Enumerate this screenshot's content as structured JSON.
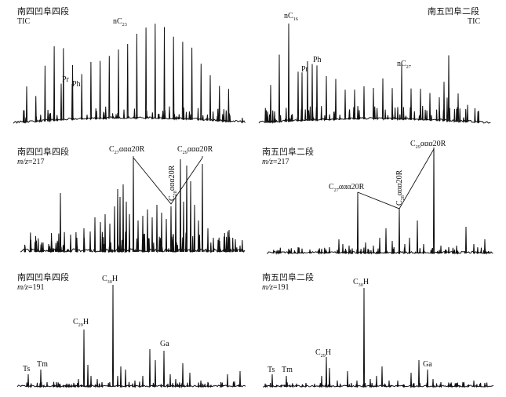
{
  "chart_data": [
    {
      "type": "line",
      "title_line1": "南四凹阜四段",
      "title_line2": "TIC",
      "peak_labels": [
        {
          "base": "nC",
          "sub": "23"
        },
        {
          "base": "Pr",
          "sub": ""
        },
        {
          "base": "Ph",
          "sub": ""
        }
      ]
    },
    {
      "type": "line",
      "title_line1": "南五凹阜二段",
      "title_line2": "TIC",
      "peak_labels": [
        {
          "base": "nC",
          "sub": "16"
        },
        {
          "base": "Pr",
          "sub": ""
        },
        {
          "base": "Ph",
          "sub": ""
        },
        {
          "base": "nC",
          "sub": "27"
        }
      ]
    },
    {
      "type": "line",
      "title_line1": "南四凹阜四段",
      "title_line2": "m/z=217",
      "peak_labels": [
        {
          "base": "C",
          "sub": "27",
          "post": "ααα20R"
        },
        {
          "base": "C",
          "sub": "28",
          "post": "ααα20R"
        },
        {
          "base": "C",
          "sub": "29",
          "post": "ααα20R"
        }
      ]
    },
    {
      "type": "line",
      "title_line1": "南五凹阜二段",
      "title_line2": "m/z=217",
      "peak_labels": [
        {
          "base": "C",
          "sub": "27",
          "post": "ααα20R"
        },
        {
          "base": "C",
          "sub": "28",
          "post": "ααα20R"
        },
        {
          "base": "C",
          "sub": "29",
          "post": "ααα20R"
        }
      ]
    },
    {
      "type": "line",
      "title_line1": "南四凹阜四段",
      "title_line2": "m/z=191",
      "peak_labels": [
        {
          "base": "Ts",
          "sub": ""
        },
        {
          "base": "Tm",
          "sub": ""
        },
        {
          "base": "C",
          "sub": "29",
          "post": "H"
        },
        {
          "base": "C",
          "sub": "30",
          "post": "H"
        },
        {
          "base": "Ga",
          "sub": ""
        }
      ]
    },
    {
      "type": "line",
      "title_line1": "南五凹阜二段",
      "title_line2": "m/z=191",
      "peak_labels": [
        {
          "base": "Ts",
          "sub": ""
        },
        {
          "base": "Tm",
          "sub": ""
        },
        {
          "base": "C",
          "sub": "29",
          "post": "H"
        },
        {
          "base": "C",
          "sub": "30",
          "post": "H"
        },
        {
          "base": "Ga",
          "sub": ""
        }
      ]
    }
  ]
}
